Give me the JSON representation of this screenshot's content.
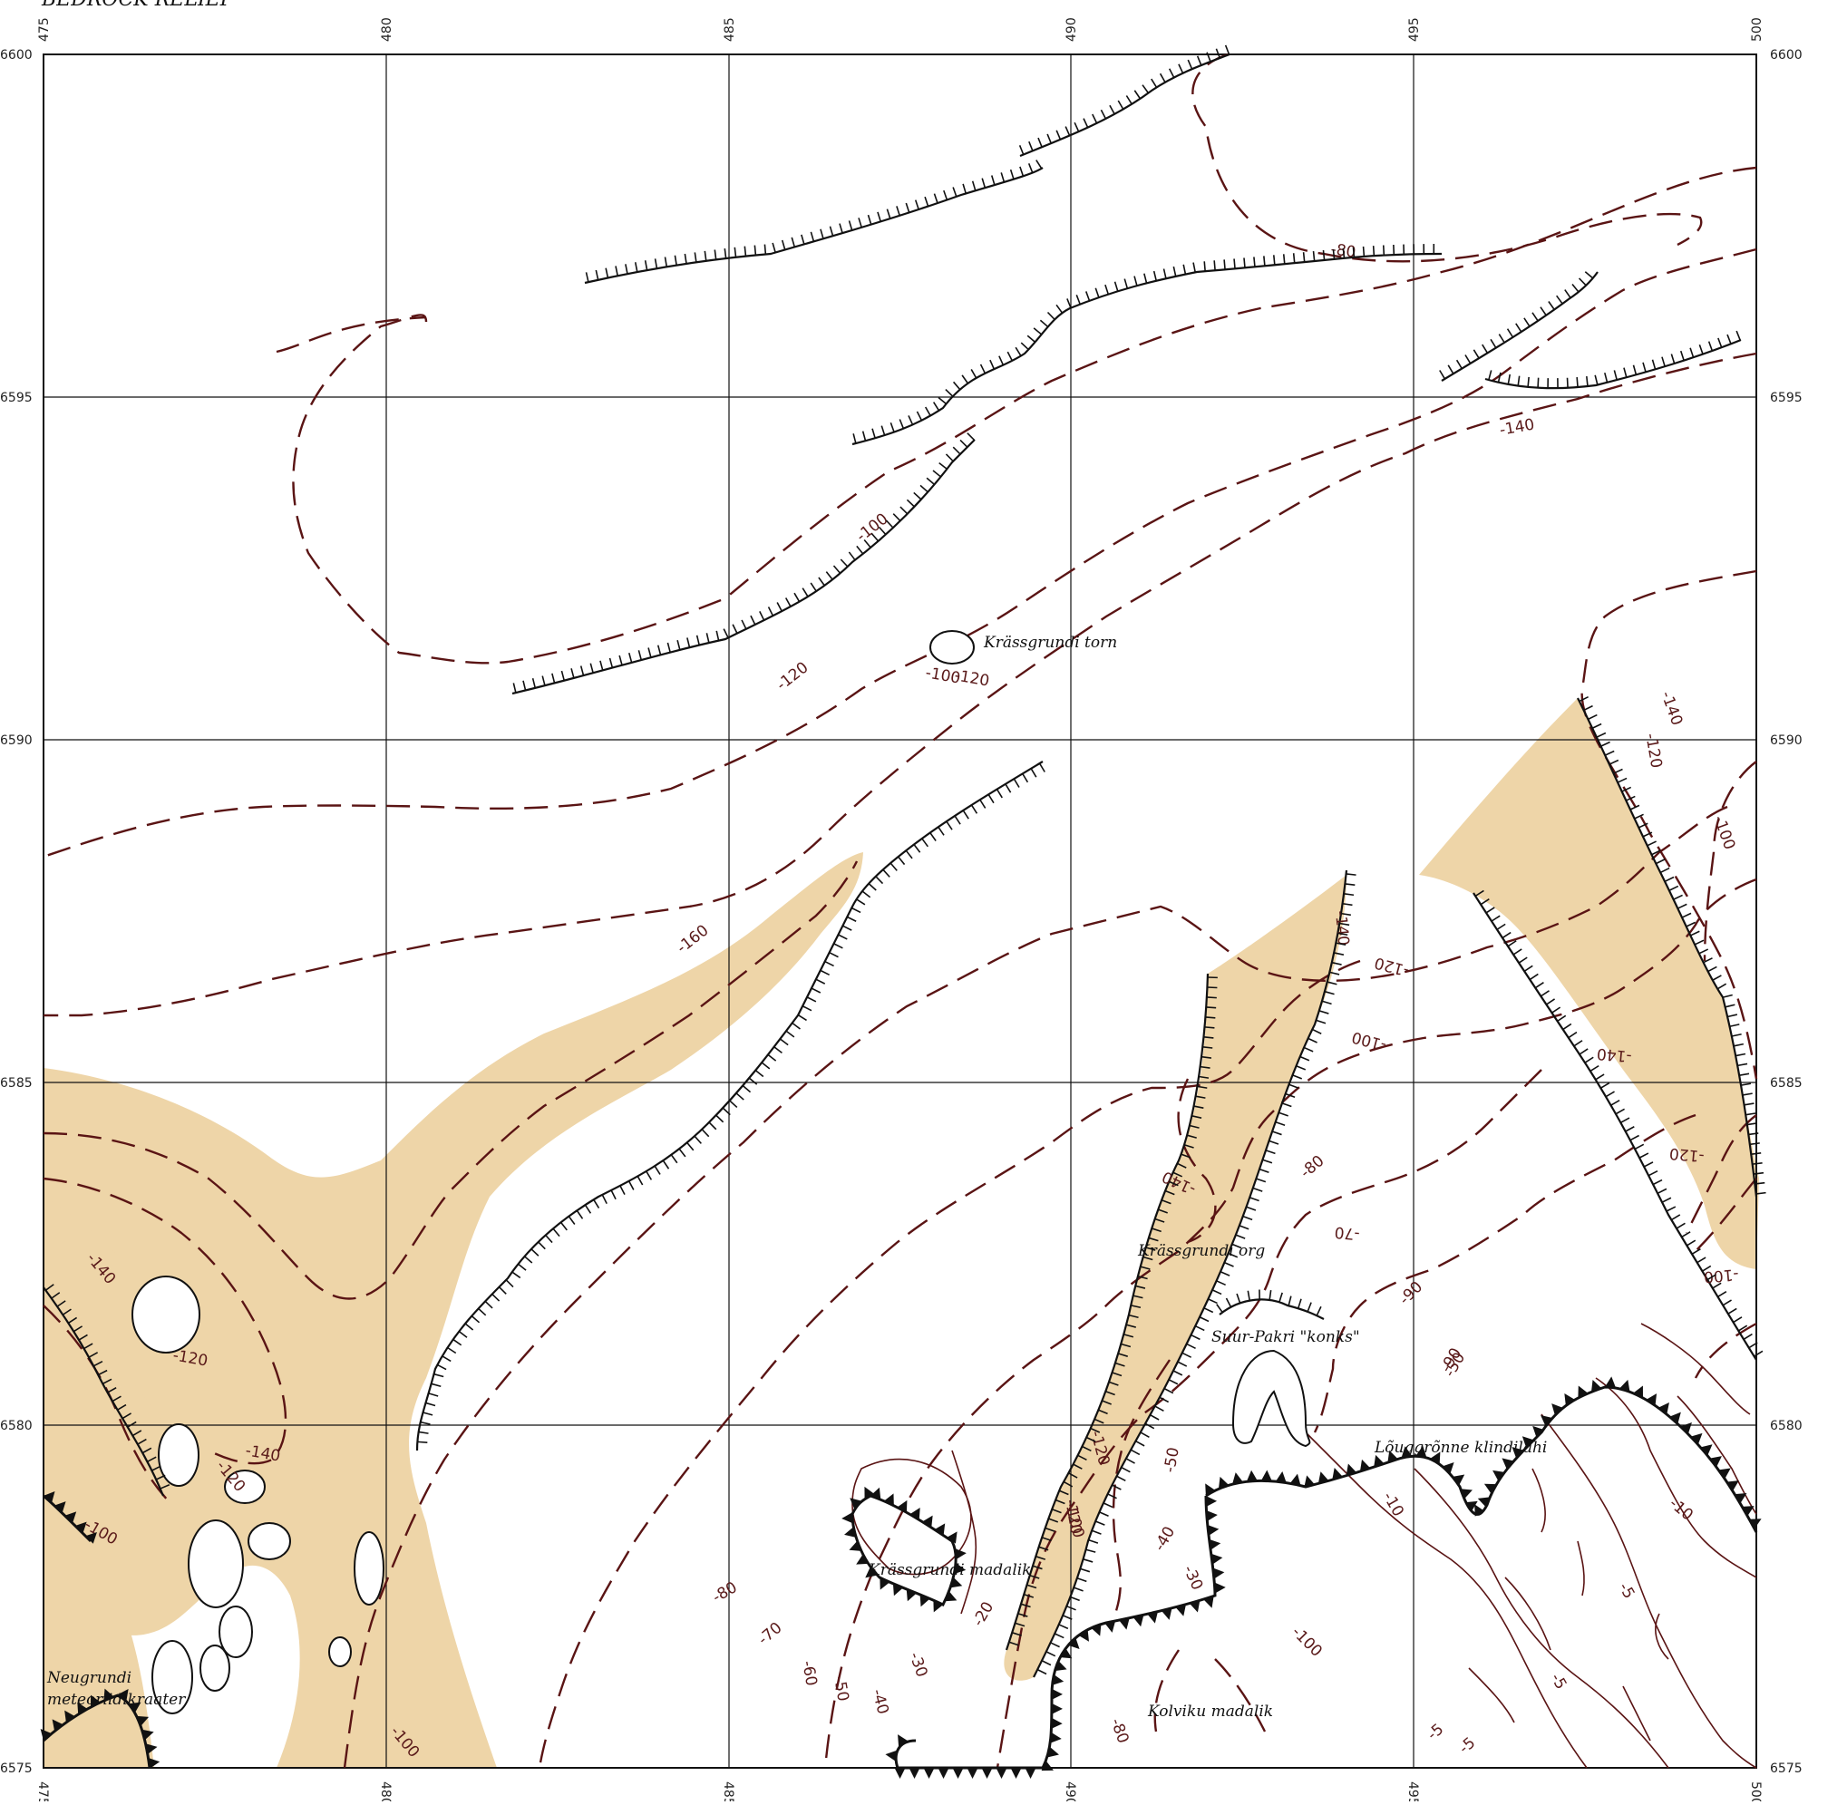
{
  "map": {
    "title": "BEDROCK RELIEF",
    "colors": {
      "fill": "#eed5a8",
      "contour": "#5a1414",
      "grid": "#111111",
      "scarp": "#111111"
    },
    "x_ticks": [
      "475",
      "480",
      "485",
      "490",
      "495",
      "500"
    ],
    "y_ticks": [
      "6600",
      "6595",
      "6590",
      "6585",
      "6580",
      "6575"
    ],
    "bottom_ticks": [
      "475",
      "480",
      "485",
      "490",
      "495",
      "500"
    ],
    "place_names": [
      "Krässgrundi torn",
      "Krässgrundi org",
      "Suur-Pakri \"konks\"",
      "Lõuggrõnne klindilahi",
      "Krässgrundi madalik",
      "Kolviku madalik",
      "Neugrundi",
      "meteoriidikraater"
    ],
    "contour_labels": [
      "-80",
      "-140",
      "-100",
      "-120",
      "-100",
      "-120",
      "-120",
      "-160",
      "-140",
      "-140",
      "-120",
      "-100",
      "-140",
      "-120",
      "-100",
      "-140",
      "-120",
      "-100",
      "-80",
      "-70",
      "-90",
      "-90",
      "-50",
      "-140",
      "-120",
      "-100",
      "-140",
      "-120",
      "-120",
      "-100",
      "-80",
      "-70",
      "-60",
      "-50",
      "-40",
      "-30",
      "-20",
      "-30",
      "-40",
      "-50",
      "-100",
      "-10",
      "-5",
      "-10",
      "-5",
      "-5",
      "-5",
      "-80",
      "-100"
    ]
  }
}
